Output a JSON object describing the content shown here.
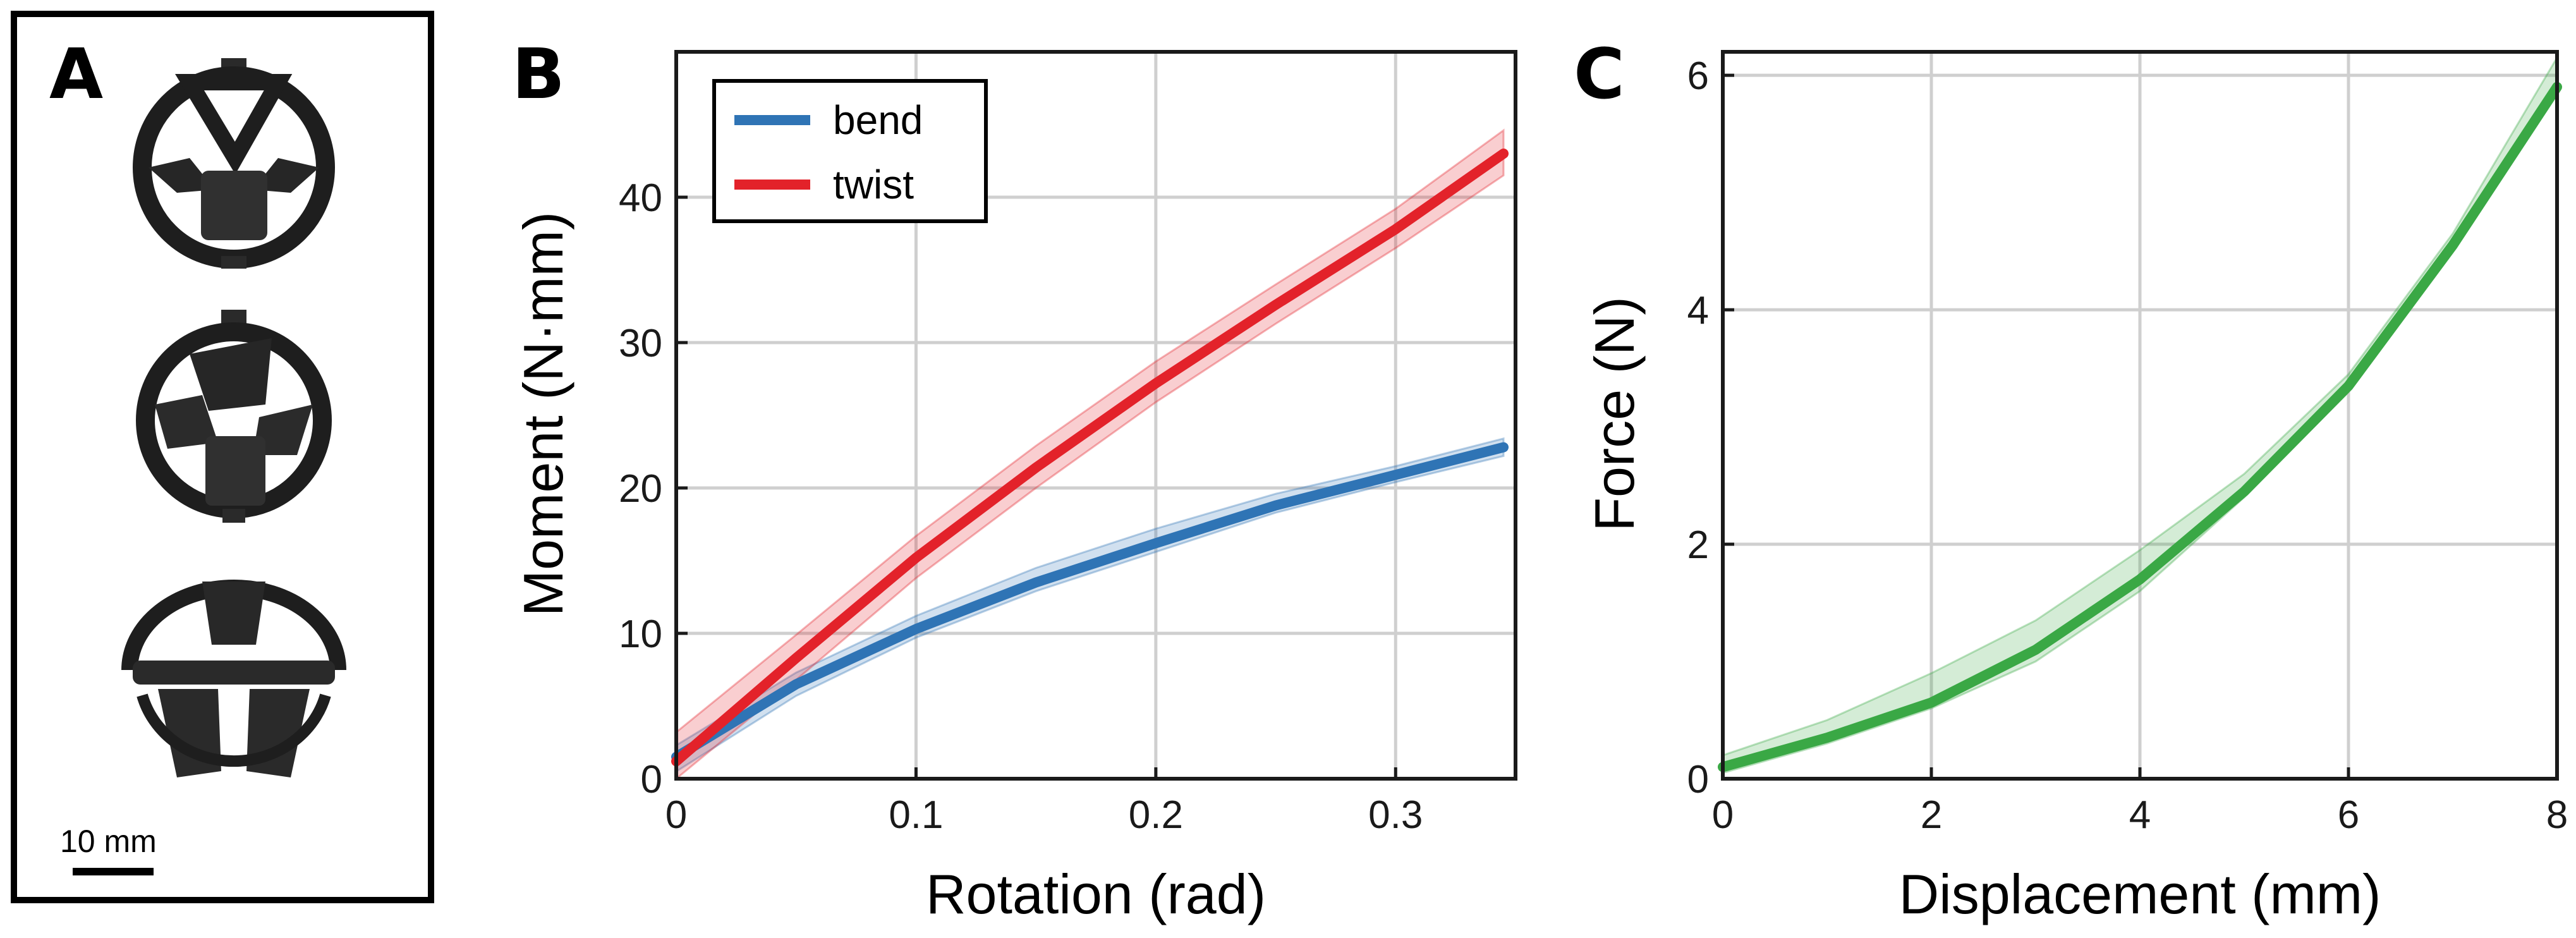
{
  "panels": {
    "a": {
      "letter": "A",
      "scale_bar_label": "10 mm"
    },
    "b": {
      "letter": "B"
    },
    "c": {
      "letter": "C"
    }
  },
  "colors": {
    "bend": "#2f74b5",
    "twist": "#e3222a",
    "force": "#3aa845"
  },
  "chart_data": [
    {
      "id": "B",
      "type": "line",
      "xlabel": "Rotation (rad)",
      "ylabel": "Moment (N·mm)",
      "xlim": [
        0,
        0.35
      ],
      "ylim": [
        0,
        50
      ],
      "xticks": [
        0,
        0.1,
        0.2,
        0.3
      ],
      "xtick_labels": [
        "0",
        "0.1",
        "0.2",
        "0.3"
      ],
      "yticks": [
        0,
        10,
        20,
        30,
        40
      ],
      "ytick_labels": [
        "0",
        "10",
        "20",
        "30",
        "40"
      ],
      "grid": true,
      "legend": "top-left",
      "series": [
        {
          "name": "bend",
          "x": [
            0,
            0.05,
            0.1,
            0.15,
            0.2,
            0.25,
            0.3,
            0.345
          ],
          "y": [
            1.5,
            6.5,
            10.3,
            13.5,
            16.2,
            18.8,
            20.9,
            22.8
          ],
          "band_lower": [
            0.5,
            5.7,
            9.7,
            12.9,
            15.6,
            18.3,
            20.4,
            22.2
          ],
          "band_upper": [
            2.3,
            7.3,
            11.2,
            14.5,
            17.2,
            19.6,
            21.5,
            23.4
          ]
        },
        {
          "name": "twist",
          "x": [
            0,
            0.05,
            0.1,
            0.15,
            0.2,
            0.25,
            0.3,
            0.345
          ],
          "y": [
            1.2,
            8.3,
            15.2,
            21.4,
            27.2,
            32.6,
            37.8,
            43.0
          ],
          "band_lower": [
            0,
            6.8,
            13.8,
            20.0,
            25.9,
            31.3,
            36.5,
            41.5
          ],
          "band_upper": [
            3.2,
            9.9,
            16.7,
            22.9,
            28.7,
            34.0,
            39.2,
            44.6
          ]
        }
      ]
    },
    {
      "id": "C",
      "type": "line",
      "xlabel": "Displacement (mm)",
      "ylabel": "Force (N)",
      "xlim": [
        0,
        8
      ],
      "ylim": [
        0,
        6.2
      ],
      "xticks": [
        0,
        2,
        4,
        6,
        8
      ],
      "xtick_labels": [
        "0",
        "2",
        "4",
        "6",
        "8"
      ],
      "yticks": [
        0,
        2,
        4,
        6
      ],
      "ytick_labels": [
        "0",
        "2",
        "4",
        "6"
      ],
      "grid": true,
      "series": [
        {
          "name": "force",
          "x": [
            0,
            1,
            2,
            3,
            4,
            5,
            6,
            7,
            8
          ],
          "y": [
            0.1,
            0.35,
            0.65,
            1.1,
            1.7,
            2.45,
            3.35,
            4.55,
            5.9
          ],
          "band_lower": [
            0.05,
            0.3,
            0.6,
            1.0,
            1.6,
            2.4,
            3.3,
            4.5,
            5.85
          ],
          "band_upper": [
            0.2,
            0.5,
            0.9,
            1.35,
            1.95,
            2.6,
            3.45,
            4.65,
            6.15
          ]
        }
      ]
    }
  ]
}
